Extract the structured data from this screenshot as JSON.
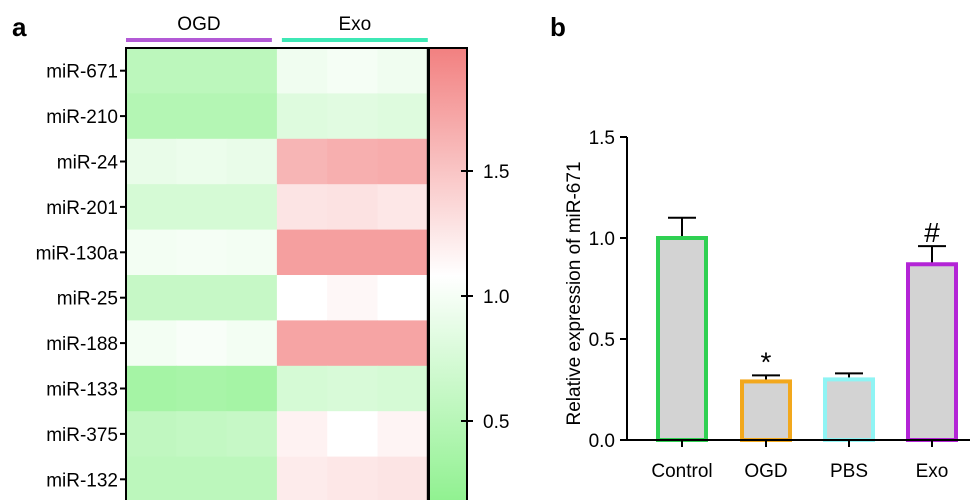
{
  "chart_data": [
    {
      "panel_label": "a",
      "type": "heatmap",
      "groups": [
        {
          "name": "OGD",
          "color": "#b35ad6",
          "columns": 3
        },
        {
          "name": "Exo",
          "color": "#3ee8b5",
          "columns": 3
        }
      ],
      "rows": [
        "miR-671",
        "miR-210",
        "miR-24",
        "miR-201",
        "miR-130a",
        "miR-25",
        "miR-188",
        "miR-133",
        "miR-375",
        "miR-132"
      ],
      "values": [
        [
          0.55,
          0.55,
          0.55,
          0.9,
          0.93,
          0.9
        ],
        [
          0.5,
          0.5,
          0.5,
          0.78,
          0.8,
          0.78
        ],
        [
          0.85,
          0.87,
          0.85,
          1.55,
          1.6,
          1.62
        ],
        [
          0.72,
          0.72,
          0.72,
          1.2,
          1.22,
          1.18
        ],
        [
          0.92,
          0.93,
          0.92,
          1.72,
          1.72,
          1.72
        ],
        [
          0.62,
          0.62,
          0.62,
          1.0,
          1.06,
          1.0
        ],
        [
          0.92,
          0.95,
          0.92,
          1.68,
          1.68,
          1.68
        ],
        [
          0.4,
          0.42,
          0.4,
          0.72,
          0.74,
          0.72
        ],
        [
          0.58,
          0.6,
          0.62,
          1.1,
          1.0,
          1.08
        ],
        [
          0.55,
          0.55,
          0.55,
          1.15,
          1.18,
          1.2
        ]
      ],
      "colorbar": {
        "range": [
          0.25,
          1.95
        ],
        "ticks": [
          0.5,
          1.0,
          1.5
        ],
        "tick_labels": [
          "0.5",
          "1.0",
          "1.5"
        ],
        "low_color": "#8ff18f",
        "mid_color": "#ffffff",
        "high_color": "#f28080"
      }
    },
    {
      "panel_label": "b",
      "type": "bar",
      "categories": [
        "Control",
        "OGD",
        "PBS",
        "Exo"
      ],
      "values": [
        1.0,
        0.29,
        0.3,
        0.87
      ],
      "errors": [
        0.1,
        0.03,
        0.03,
        0.09
      ],
      "edge_colors": [
        "#2fd052",
        "#f2a81d",
        "#8ff4f4",
        "#b324d6"
      ],
      "fill_color": "#d3d3d3",
      "annotations": [
        "",
        "*",
        "",
        "#"
      ],
      "ylabel": "Relative expression of miR-671",
      "ylim": [
        0,
        1.5
      ],
      "yticks": [
        0.0,
        0.5,
        1.0,
        1.5
      ],
      "ytick_labels": [
        "0.0",
        "0.5",
        "1.0",
        "1.5"
      ]
    }
  ]
}
